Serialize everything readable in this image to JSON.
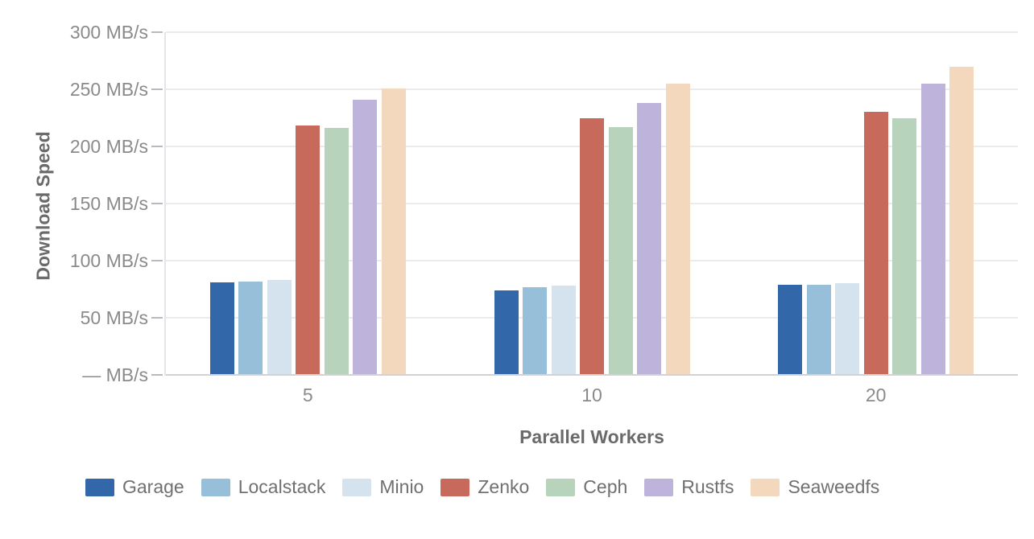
{
  "chart_data": {
    "type": "bar",
    "title": "",
    "xlabel": "Parallel Workers",
    "ylabel": "Download Speed",
    "unit": "MB/s",
    "categories": [
      "5",
      "10",
      "20"
    ],
    "series": [
      {
        "name": "Garage",
        "color": "#3267aa",
        "values": [
          81,
          74,
          79
        ]
      },
      {
        "name": "Localstack",
        "color": "#98bfda",
        "values": [
          82,
          77,
          79
        ]
      },
      {
        "name": "Minio",
        "color": "#d5e3ee",
        "values": [
          83,
          78,
          80
        ]
      },
      {
        "name": "Zenko",
        "color": "#c76a5b",
        "values": [
          218,
          225,
          230
        ]
      },
      {
        "name": "Ceph",
        "color": "#b8d3bc",
        "values": [
          216,
          217,
          225
        ]
      },
      {
        "name": "Rustfs",
        "color": "#beb3da",
        "values": [
          241,
          238,
          255
        ]
      },
      {
        "name": "Seaweedfs",
        "color": "#f4d8bd",
        "values": [
          251,
          255,
          270
        ]
      }
    ],
    "y_axis": {
      "min": 0,
      "max": 300,
      "step": 50,
      "tick_values": [
        300,
        250,
        200,
        150,
        100,
        50,
        0
      ],
      "tick_labels": [
        "300 MB/s",
        "250 MB/s",
        "200 MB/s",
        "150 MB/s",
        "100 MB/s",
        "50 MB/s",
        "— MB/s"
      ]
    },
    "legend_position": "bottom",
    "grid": true
  },
  "colors": {
    "background": "#ffffff",
    "grid": "#eaeaef",
    "baseline": "#d1d1d6",
    "axis_line": "#e4e4e9",
    "tick_mark": "#b9b9be",
    "tick_label_text": "#8a8a8a",
    "axis_title_text": "#6a6a6a",
    "legend_label_text": "#707070"
  }
}
